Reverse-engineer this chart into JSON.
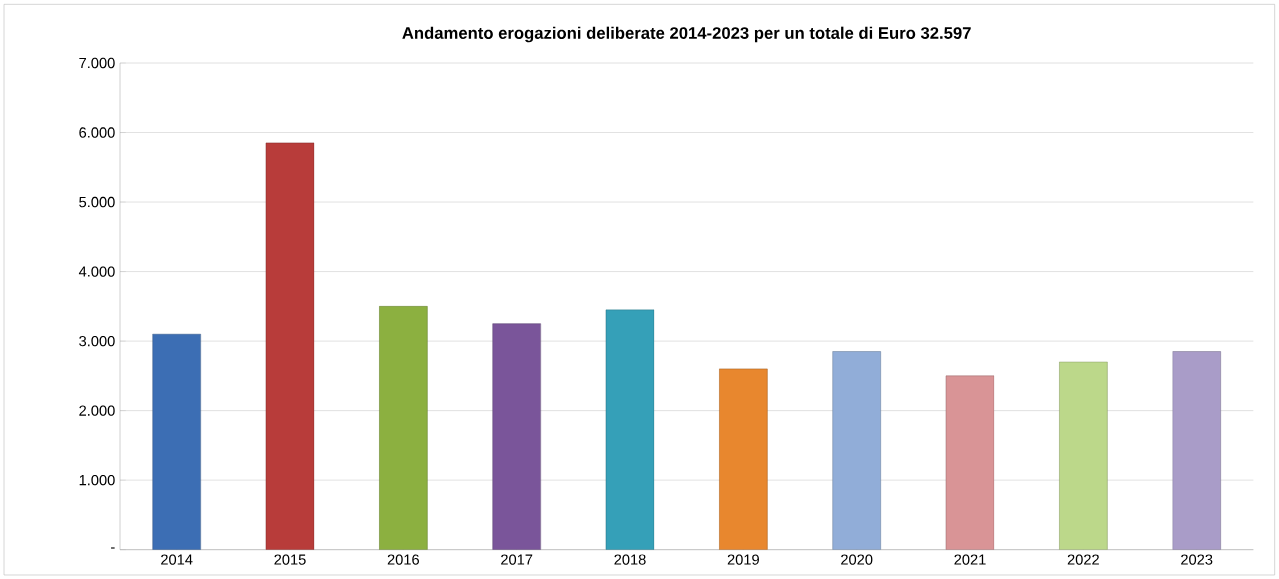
{
  "chart_data": {
    "type": "bar",
    "title": "Andamento erogazioni deliberate 2014-2023 per un totale di Euro 32.597",
    "categories": [
      "2014",
      "2015",
      "2016",
      "2017",
      "2018",
      "2019",
      "2020",
      "2021",
      "2022",
      "2023"
    ],
    "values": [
      3100,
      5850,
      3500,
      3250,
      3450,
      2600,
      2850,
      2500,
      2700,
      2850
    ],
    "colors": [
      "#3c6eb4",
      "#b83c3a",
      "#8cb040",
      "#7a559a",
      "#35a0b8",
      "#e8872e",
      "#91add8",
      "#d99496",
      "#bcd88a",
      "#a99cc8"
    ],
    "ylim": [
      0,
      7000
    ],
    "yticks": [
      {
        "value": 0,
        "label": "-"
      },
      {
        "value": 1000,
        "label": "1.000"
      },
      {
        "value": 2000,
        "label": "2.000"
      },
      {
        "value": 3000,
        "label": "3.000"
      },
      {
        "value": 4000,
        "label": "4.000"
      },
      {
        "value": 5000,
        "label": "5.000"
      },
      {
        "value": 6000,
        "label": "6.000"
      },
      {
        "value": 7000,
        "label": "7.000"
      }
    ],
    "grid": "y"
  }
}
